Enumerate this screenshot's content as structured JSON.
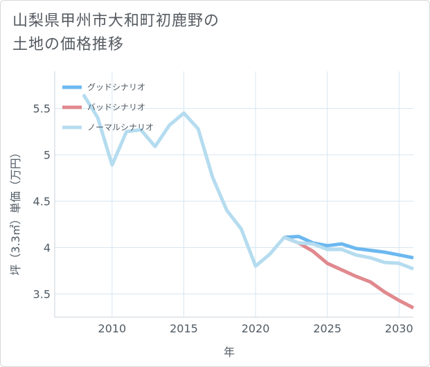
{
  "title_lines": [
    "山梨県甲州市大和町初鹿野の",
    "土地の価格推移"
  ],
  "chart_data": {
    "type": "line",
    "xlabel": "年",
    "ylabel": "坪（3.3㎡）単価（万円）",
    "xlim": [
      2006,
      2031
    ],
    "ylim": [
      3.25,
      5.9
    ],
    "x_ticks": [
      2010,
      2015,
      2020,
      2025,
      2030
    ],
    "y_ticks": [
      3.5,
      4,
      4.5,
      5,
      5.5
    ],
    "y_tick_labels": [
      "3.5",
      "4",
      "4.5",
      "5",
      "5.5"
    ],
    "grid": true,
    "legend_position": "top-left",
    "series": [
      {
        "name": "グッドシナリオ",
        "color": "#6cb8f0",
        "x": [
          2022,
          2023,
          2024,
          2025,
          2026,
          2027,
          2028,
          2029,
          2030,
          2031
        ],
        "values": [
          4.11,
          4.12,
          4.05,
          4.02,
          4.04,
          3.99,
          3.97,
          3.95,
          3.92,
          3.89
        ]
      },
      {
        "name": "バッドシナリオ",
        "color": "#e0898e",
        "x": [
          2022,
          2023,
          2024,
          2025,
          2026,
          2027,
          2028,
          2029,
          2030,
          2031
        ],
        "values": [
          4.11,
          4.05,
          3.96,
          3.83,
          3.76,
          3.69,
          3.63,
          3.52,
          3.43,
          3.35
        ]
      },
      {
        "name": "ノーマルシナリオ",
        "color": "#b5dcef",
        "x": [
          2008,
          2009,
          2010,
          2011,
          2012,
          2013,
          2014,
          2015,
          2016,
          2017,
          2018,
          2019,
          2020,
          2021,
          2022,
          2023,
          2024,
          2025,
          2026,
          2027,
          2028,
          2029,
          2030,
          2031
        ],
        "values": [
          5.65,
          5.4,
          4.89,
          5.25,
          5.27,
          5.09,
          5.32,
          5.45,
          5.28,
          4.76,
          4.4,
          4.2,
          3.8,
          3.93,
          4.11,
          4.05,
          4.04,
          3.98,
          3.98,
          3.92,
          3.89,
          3.84,
          3.83,
          3.77
        ]
      }
    ]
  }
}
